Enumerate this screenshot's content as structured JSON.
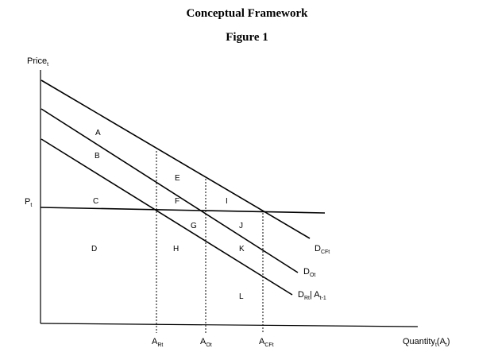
{
  "title": "Conceptual Framework",
  "subtitle": "Figure 1",
  "axes": {
    "y_label": "Price",
    "y_label_sub": "t",
    "x_label_main": "Quantity",
    "x_label_sub1": "t",
    "x_label_mid": "(A",
    "x_label_sub2": "t",
    "x_label_end": ")"
  },
  "price_level": {
    "main": "P",
    "sub": "t"
  },
  "quantity_markers": [
    {
      "main": "A",
      "sub": "Rt"
    },
    {
      "main": "A",
      "sub": "Ot"
    },
    {
      "main": "A",
      "sub": "CFt"
    }
  ],
  "curves": [
    {
      "main": "D",
      "sub": "CFt"
    },
    {
      "main": "D",
      "sub": "Ot"
    },
    {
      "main": "D",
      "sub": "Rt",
      "suffix": "| A",
      "suffix_sub": "t-1"
    }
  ],
  "regions": [
    "A",
    "B",
    "C",
    "D",
    "E",
    "F",
    "G",
    "H",
    "I",
    "J",
    "K",
    "L"
  ],
  "colors": {
    "line": "#000000",
    "background": "#ffffff"
  }
}
